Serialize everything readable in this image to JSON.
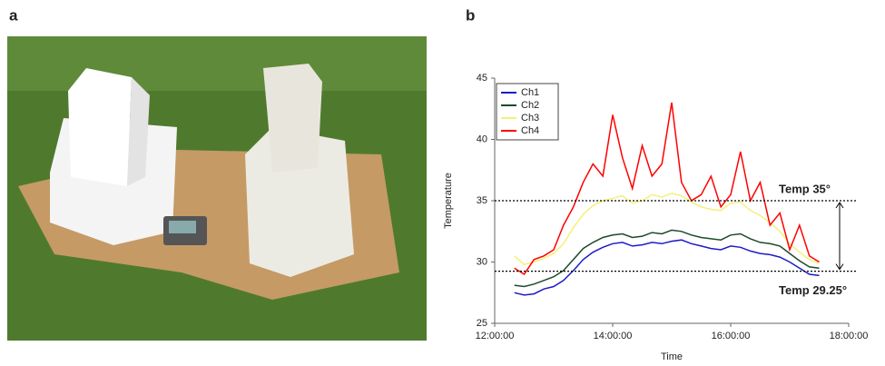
{
  "panel_labels": [
    "a",
    "b"
  ],
  "chart_data": {
    "type": "line",
    "y_label": "Temperature",
    "x_label": "Time",
    "x": [
      "12:20:00",
      "12:30:00",
      "12:40:00",
      "12:50:00",
      "13:00:00",
      "13:10:00",
      "13:20:00",
      "13:30:00",
      "13:40:00",
      "13:50:00",
      "14:00:00",
      "14:10:00",
      "14:20:00",
      "14:30:00",
      "14:40:00",
      "14:50:00",
      "15:00:00",
      "15:10:00",
      "15:20:00",
      "15:30:00",
      "15:40:00",
      "15:50:00",
      "16:00:00",
      "16:10:00",
      "16:20:00",
      "16:30:00",
      "16:40:00",
      "16:50:00",
      "17:00:00",
      "17:10:00",
      "17:20:00",
      "17:30:00"
    ],
    "series": [
      {
        "name": "Ch1",
        "color": "#1c1cc8",
        "values": [
          27.5,
          27.3,
          27.4,
          27.8,
          28.0,
          28.5,
          29.3,
          30.2,
          30.8,
          31.2,
          31.5,
          31.6,
          31.3,
          31.4,
          31.6,
          31.5,
          31.7,
          31.8,
          31.5,
          31.3,
          31.1,
          31.0,
          31.3,
          31.2,
          30.9,
          30.7,
          30.6,
          30.4,
          30.0,
          29.5,
          29.0,
          28.9
        ]
      },
      {
        "name": "Ch2",
        "color": "#1d4a2c",
        "values": [
          28.1,
          28.0,
          28.2,
          28.5,
          28.8,
          29.3,
          30.2,
          31.1,
          31.6,
          32.0,
          32.2,
          32.3,
          32.0,
          32.1,
          32.4,
          32.3,
          32.6,
          32.5,
          32.2,
          32.0,
          31.9,
          31.8,
          32.2,
          32.3,
          31.9,
          31.6,
          31.5,
          31.3,
          30.7,
          30.1,
          29.6,
          29.5
        ]
      },
      {
        "name": "Ch3",
        "color": "#f5f07a",
        "values": [
          30.5,
          29.8,
          30.0,
          30.3,
          30.7,
          31.5,
          32.8,
          33.9,
          34.6,
          35.0,
          35.2,
          35.4,
          34.8,
          35.0,
          35.5,
          35.3,
          35.6,
          35.4,
          34.9,
          34.5,
          34.3,
          34.2,
          34.8,
          34.9,
          34.2,
          33.8,
          33.2,
          32.5,
          31.5,
          30.8,
          30.2,
          29.9
        ]
      },
      {
        "name": "Ch4",
        "color": "#ff0000",
        "values": [
          29.5,
          29.0,
          30.2,
          30.5,
          31.0,
          33.0,
          34.5,
          36.5,
          38.0,
          37.0,
          42.0,
          38.5,
          36.0,
          39.5,
          37.0,
          38.0,
          43.0,
          36.5,
          35.0,
          35.5,
          37.0,
          34.5,
          35.5,
          39.0,
          35.0,
          36.5,
          33.0,
          34.0,
          31.0,
          33.0,
          30.5,
          30.0
        ]
      }
    ],
    "xlim": [
      "12:00:00",
      "18:00:00"
    ],
    "xticks": [
      "12:00:00",
      "14:00:00",
      "16:00:00",
      "18:00:00"
    ],
    "ylim": [
      25,
      45
    ],
    "yticks": [
      25,
      30,
      35,
      40,
      45
    ],
    "reference_lines": [
      {
        "value": 35,
        "label": "Temp 35°"
      },
      {
        "value": 29.25,
        "label": "Temp 29.25°"
      }
    ],
    "legend": "upper left"
  }
}
